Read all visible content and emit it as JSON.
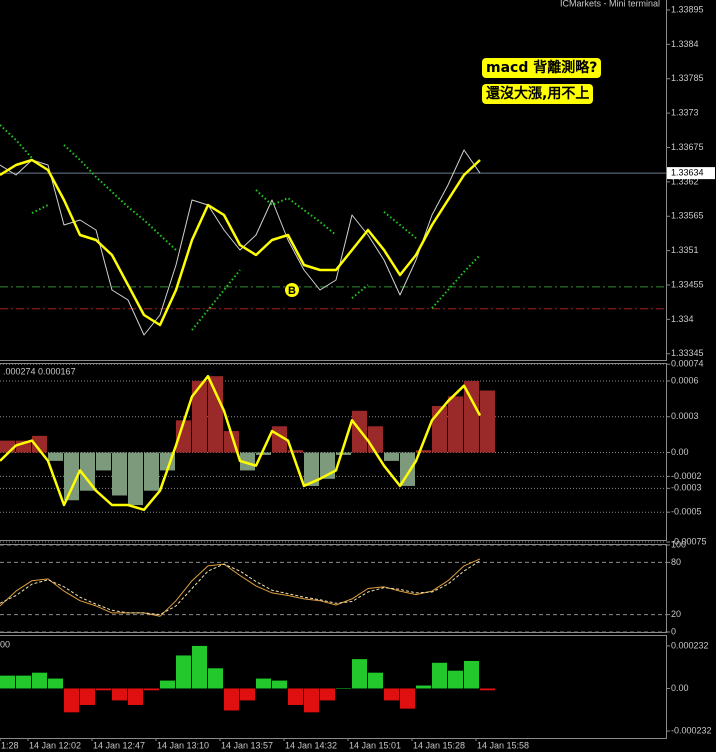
{
  "chart_data": [
    {
      "type": "line",
      "title": "ICMarkets - Mini terminal",
      "xlim": [
        0,
        166.5
      ],
      "ylim": [
        1.33335,
        1.33911
      ],
      "yticks": [
        1.33895,
        1.3384,
        1.33785,
        1.3373,
        1.33675,
        1.3362,
        1.33565,
        1.3351,
        1.33455,
        1.334,
        1.33345
      ],
      "grid": false,
      "x": [
        0,
        4,
        8,
        12,
        16,
        20,
        24,
        28,
        32,
        36,
        40,
        44,
        48,
        52,
        56,
        60,
        64,
        68,
        72,
        76,
        80,
        84,
        88,
        92,
        96,
        100,
        104,
        108,
        112,
        116,
        120
      ],
      "series": [
        {
          "color": "#d0d0d0",
          "style": "solid",
          "values": [
            1.33647,
            1.33631,
            1.33655,
            1.33647,
            1.33551,
            1.33559,
            1.33543,
            1.33447,
            1.33431,
            1.33375,
            1.33407,
            1.33487,
            1.33591,
            1.33583,
            1.33543,
            1.33511,
            1.33535,
            1.33591,
            1.33527,
            1.33479,
            1.33447,
            1.33463,
            1.33567,
            1.33535,
            1.33495,
            1.33439,
            1.33495,
            1.33567,
            1.33615,
            1.33671,
            1.33634
          ]
        },
        {
          "color": "#ffff00",
          "style": "thick",
          "values": [
            1.33631,
            1.33647,
            1.33655,
            1.33639,
            1.33591,
            1.33535,
            1.33527,
            1.33503,
            1.33455,
            1.33407,
            1.33391,
            1.33447,
            1.33527,
            1.33583,
            1.33567,
            1.33519,
            1.33503,
            1.33527,
            1.33535,
            1.33487,
            1.33479,
            1.33479,
            1.33511,
            1.33543,
            1.33511,
            1.33471,
            1.33503,
            1.33551,
            1.33591,
            1.33631,
            1.33655
          ]
        },
        {
          "color": "#22cc22",
          "style": "dotted",
          "values": [
            1.33711,
            1.33687,
            1.33658,
            null,
            1.33679,
            1.33655,
            1.33628,
            1.33604,
            1.3358,
            1.33559,
            1.33535,
            1.33511,
            null,
            null,
            null,
            null,
            1.33607,
            1.33583,
            1.33594,
            1.33575,
            1.33556,
            1.33535,
            null,
            null,
            1.33572,
            1.33551,
            1.3353,
            null,
            null,
            null,
            null
          ]
        },
        {
          "color": "#22cc22",
          "style": "dotted",
          "values": [
            null,
            null,
            1.3357,
            1.33583,
            null,
            null,
            null,
            null,
            null,
            null,
            null,
            null,
            1.33383,
            1.33415,
            1.33447,
            1.33479,
            null,
            null,
            null,
            null,
            null,
            null,
            1.33434,
            1.33455,
            null,
            null,
            null,
            1.33418,
            1.33447,
            1.33476,
            1.33503
          ]
        }
      ],
      "levels": [
        {
          "value": 1.33634,
          "color": "#6a7c8c",
          "style": "solid"
        },
        {
          "value": 1.33452,
          "color": "#2e8b2e",
          "style": "dashdot"
        },
        {
          "value": 1.33417,
          "color": "#a02020",
          "style": "dashdot"
        }
      ],
      "annotations": [
        "macd 背離測略?",
        "還沒大漲,用不上"
      ],
      "marker": {
        "text": "B",
        "x": 73,
        "y": 1.33447
      }
    },
    {
      "type": "combo",
      "label": ".000274 0.000167",
      "xlim": [
        0,
        166.5
      ],
      "ylim": [
        -0.000733,
        0.000742
      ],
      "yticks": [
        0.00074,
        0.0006,
        0.0003,
        {
          "value": 0,
          "label": "0.00"
        },
        -0.0002,
        -0.0003,
        -0.0005,
        -0.00075
      ],
      "grid": true,
      "grid_style": "dotted",
      "x": [
        0,
        4,
        8,
        12,
        16,
        20,
        24,
        28,
        32,
        36,
        40,
        44,
        48,
        52,
        56,
        60,
        64,
        68,
        72,
        76,
        80,
        84,
        88,
        92,
        96,
        100,
        104,
        108,
        112,
        116,
        120
      ],
      "series": [
        {
          "style": "bar",
          "positive_color": "#9a2a2a",
          "negative_color": "#7d9a7d",
          "values": [
            0.0001,
            0.0001,
            0.00014,
            -7e-05,
            -0.0004,
            -0.00032,
            -0.00015,
            -0.00036,
            -0.00044,
            -0.00032,
            -0.00015,
            0.00027,
            0.0006,
            0.00064,
            0.00018,
            -0.00015,
            -2e-05,
            0.00022,
            2e-05,
            -0.00028,
            -0.00022,
            -2e-05,
            0.00035,
            0.00022,
            -7e-05,
            -0.00028,
            2e-05,
            0.00039,
            0.00047,
            0.0006,
            0.00052
          ]
        },
        {
          "style": "thick",
          "color": "#ffff00",
          "values": [
            -7e-05,
            6e-05,
            0.0001,
            -7e-05,
            -0.00044,
            -0.00015,
            -0.00032,
            -0.00044,
            -0.00044,
            -0.00048,
            -0.00032,
            6e-05,
            0.00047,
            0.00064,
            0.00035,
            -7e-05,
            -0.00011,
            0.00018,
            0.0001,
            -0.00028,
            -0.00022,
            -0.00015,
            0.00027,
            0.0001,
            -0.00011,
            -0.00028,
            -7e-05,
            0.00027,
            0.00043,
            0.00056,
            0.00031
          ]
        }
      ]
    },
    {
      "type": "line",
      "xlim": [
        0,
        166.5
      ],
      "ylim": [
        0,
        100
      ],
      "yticks": [
        100,
        80,
        20,
        0
      ],
      "grid": true,
      "grid_style": "dashed",
      "x": [
        0,
        4,
        8,
        12,
        16,
        20,
        24,
        28,
        32,
        36,
        40,
        44,
        48,
        52,
        56,
        60,
        64,
        68,
        72,
        76,
        80,
        84,
        88,
        92,
        96,
        100,
        104,
        108,
        112,
        116,
        120
      ],
      "series": [
        {
          "style": "solid",
          "color": "#e0a040",
          "values": [
            30,
            47,
            59,
            61,
            47,
            36,
            30,
            22,
            22,
            22,
            18,
            36,
            59,
            76,
            78,
            65,
            53,
            45,
            42,
            38,
            36,
            31,
            38,
            50,
            52,
            47,
            43,
            47,
            59,
            76,
            84
          ]
        },
        {
          "style": "dashed",
          "color": "#f0e0b0",
          "values": [
            33,
            42,
            55,
            60,
            52,
            40,
            32,
            25,
            22,
            22,
            20,
            30,
            50,
            70,
            78,
            70,
            58,
            48,
            44,
            40,
            37,
            33,
            35,
            46,
            51,
            49,
            45,
            46,
            55,
            70,
            82
          ]
        }
      ]
    },
    {
      "type": "bar",
      "label": "00",
      "xlim": [
        0,
        166.5
      ],
      "ylim": [
        -0.00027,
        0.000286
      ],
      "yticks": [
        0.000232,
        {
          "value": 0,
          "label": "0.00"
        },
        -0.000232
      ],
      "grid": false,
      "x": [
        0,
        4,
        8,
        12,
        16,
        20,
        24,
        28,
        32,
        36,
        40,
        44,
        48,
        52,
        56,
        60,
        64,
        68,
        72,
        76,
        80,
        84,
        88,
        92,
        96,
        100,
        104,
        108,
        112,
        116,
        120
      ],
      "xticks": [
        {
          "value": 0,
          "label": "1:28"
        },
        {
          "value": 7,
          "label": "14 Jan 12:02"
        },
        {
          "value": 23,
          "label": "14 Jan 12:47"
        },
        {
          "value": 39,
          "label": "14 Jan 13:10"
        },
        {
          "value": 55,
          "label": "14 Jan 13:57"
        },
        {
          "value": 71,
          "label": "14 Jan 14:32"
        },
        {
          "value": 87,
          "label": "14 Jan 15:01"
        },
        {
          "value": 103,
          "label": "14 Jan 15:28"
        },
        {
          "value": 119,
          "label": "14 Jan 15:58"
        }
      ],
      "series": [
        {
          "style": "bar",
          "positive_color": "#22c82c",
          "negative_color": "#e01010",
          "values": [
            7e-05,
            7e-05,
            8.6e-05,
            5.4e-05,
            -0.00013,
            -9e-05,
            -1e-05,
            -6.5e-05,
            -9e-05,
            -1e-05,
            4.3e-05,
            0.00018,
            0.000232,
            0.00011,
            -0.00012,
            -6.5e-05,
            5.4e-05,
            4.3e-05,
            -9e-05,
            -0.00013,
            -6.5e-05,
            0,
            0.00016,
            8.6e-05,
            -6.5e-05,
            -0.00011,
            1.6e-05,
            0.00014,
            9.7e-05,
            0.00015,
            -1e-05
          ]
        }
      ]
    }
  ]
}
